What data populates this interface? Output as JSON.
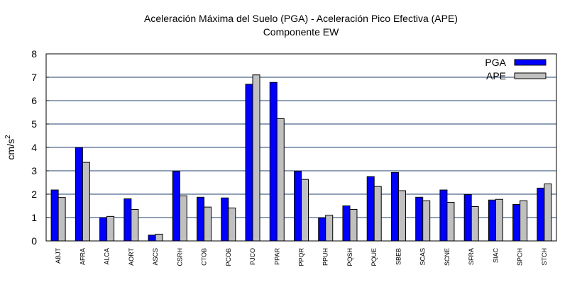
{
  "chart_data": {
    "type": "bar",
    "title": "Aceleración Máxima del Suelo (PGA) -  Aceleración Pico Efectiva (APE)",
    "subtitle": "Componente EW",
    "xlabel": "",
    "ylabel": "cm/s",
    "ylabel_superscript": "2",
    "ylim": [
      0,
      8
    ],
    "yticks": [
      "0",
      "1",
      "2",
      "3",
      "4",
      "5",
      "6",
      "7",
      "8"
    ],
    "grid": true,
    "legend_position": "top-right",
    "categories": [
      "ABJT",
      "AFRA",
      "ALCA",
      "AORT",
      "ASCS",
      "CSRH",
      "CTOB",
      "PCOB",
      "PJCO",
      "PPAR",
      "PPQR",
      "PPUH",
      "PQSH",
      "PQUE",
      "SBEB",
      "SCAS",
      "SCNE",
      "SFRA",
      "SIAC",
      "SPCH",
      "STCH"
    ],
    "series": [
      {
        "name": "PGA",
        "color": "#0000ff",
        "values": [
          2.18,
          4.0,
          1.0,
          1.8,
          0.25,
          2.97,
          1.87,
          1.84,
          6.7,
          6.78,
          2.97,
          0.98,
          1.5,
          2.75,
          2.93,
          1.87,
          2.18,
          1.98,
          1.75,
          1.56,
          2.26
        ]
      },
      {
        "name": "APE",
        "color": "#c0c0c0",
        "values": [
          1.86,
          3.36,
          1.05,
          1.35,
          0.29,
          1.93,
          1.45,
          1.41,
          7.1,
          5.23,
          2.63,
          1.1,
          1.35,
          2.33,
          2.15,
          1.72,
          1.65,
          1.47,
          1.78,
          1.72,
          2.44
        ]
      }
    ]
  }
}
